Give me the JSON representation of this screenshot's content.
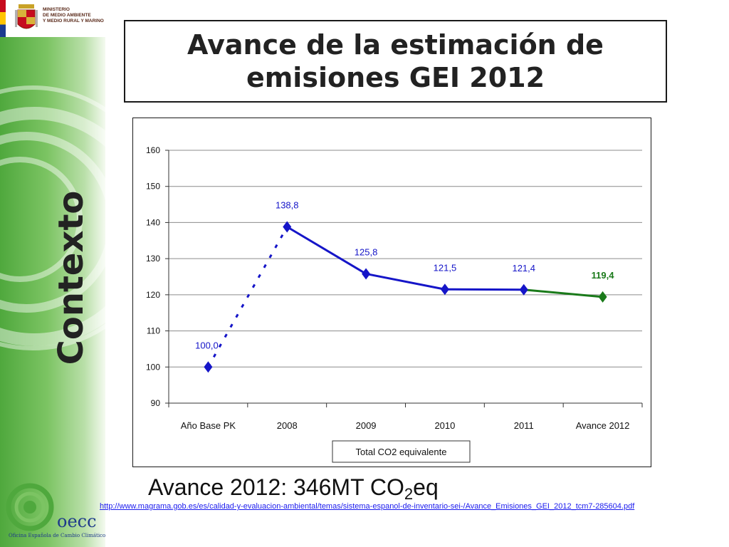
{
  "header": {
    "ministry_lines": [
      "MINISTERIO",
      "DE MEDIO AMBIENTE",
      "Y MEDIO RURAL Y MARINO"
    ]
  },
  "side_label": "Contexto",
  "title_lines": [
    "Avance de la estimación de",
    "emisiones GEI 2012"
  ],
  "chart_data": {
    "type": "line",
    "categories": [
      "Año Base PK",
      "2008",
      "2009",
      "2010",
      "2011",
      "Avance 2012"
    ],
    "series": [
      {
        "name": "Total CO2 equivalente",
        "values": [
          100.0,
          138.8,
          125.8,
          121.5,
          121.4,
          119.4
        ],
        "labels": [
          "100,0",
          "138,8",
          "125,8",
          "121,5",
          "121,4",
          "119,4"
        ],
        "color": "#1515c8",
        "segment_colors": [
          "#1515c8",
          "#1515c8",
          "#1515c8",
          "#1515c8",
          "#1a7a1a"
        ],
        "segment_styles": [
          "dotted",
          "solid",
          "solid",
          "solid",
          "solid"
        ],
        "point_colors": [
          "#1515c8",
          "#1515c8",
          "#1515c8",
          "#1515c8",
          "#1515c8",
          "#1a7a1a"
        ]
      }
    ],
    "y_ticks": [
      90,
      100,
      110,
      120,
      130,
      140,
      150,
      160
    ],
    "ylim": [
      90,
      160
    ],
    "grid": true,
    "legend": "bottom",
    "title": "",
    "xlabel": "",
    "ylabel": ""
  },
  "summary": {
    "prefix": "Avance 2012: 346MT CO",
    "sub": "2",
    "suffix": "eq"
  },
  "source_url": "http://www.magrama.gob.es/es/calidad-y-evaluacion-ambiental/temas/sistema-espanol-de-inventario-sei-/Avance_Emisiones_GEI_2012_tcm7-285604.pdf",
  "footer_logo": {
    "name": "oecc",
    "subtitle": "Oficina Española de Cambio Climático"
  }
}
